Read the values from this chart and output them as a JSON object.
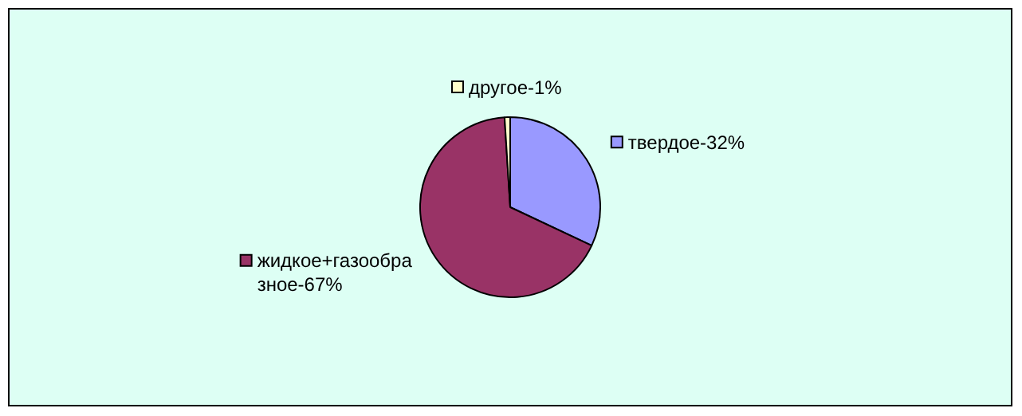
{
  "chart_data": {
    "type": "pie",
    "categories": [
      "твердое",
      "жидкое+газообразное",
      "другое"
    ],
    "values": [
      32,
      67,
      1
    ],
    "colors": [
      "#9999ff",
      "#993366",
      "#ffffcc"
    ],
    "value_labels": [
      "32%",
      "67%",
      "1%"
    ],
    "legend": "center"
  }
}
